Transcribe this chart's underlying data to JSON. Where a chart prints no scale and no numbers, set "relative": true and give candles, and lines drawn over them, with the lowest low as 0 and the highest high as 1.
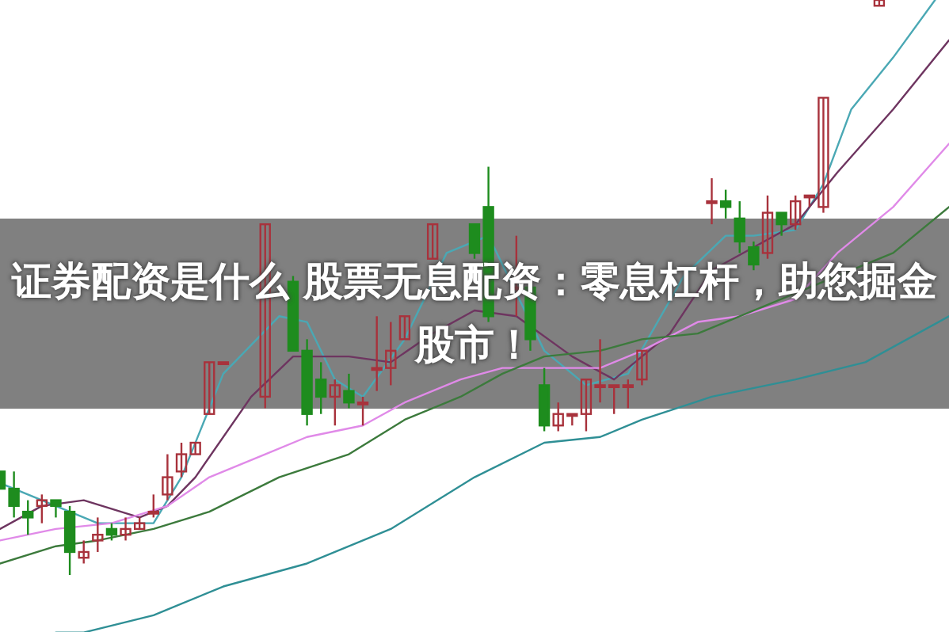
{
  "chart_data": {
    "type": "candlestick",
    "title": "证券配资是什么 股票无息配资：零息杠杆，助您掘金股市！",
    "relative": true,
    "categories": [
      null,
      null,
      null,
      null,
      null,
      null,
      null,
      null,
      null,
      null,
      null,
      null,
      null,
      null,
      null,
      null,
      null,
      null,
      null,
      null,
      null,
      null,
      null,
      null,
      null,
      null,
      null,
      null,
      null,
      null,
      null,
      null,
      null,
      null,
      null,
      null,
      null,
      null,
      null,
      null,
      null,
      null,
      null,
      null,
      null,
      null,
      null,
      null,
      null,
      null,
      null,
      null,
      null,
      null,
      null,
      null,
      null,
      null,
      null,
      null,
      null,
      null,
      null,
      null,
      null,
      null,
      null,
      null,
      null
    ],
    "ohlc": [
      [
        0.18,
        0.18,
        0.15,
        0.15
      ],
      [
        0.15,
        0.18,
        0.1,
        0.12
      ],
      [
        0.11,
        0.13,
        0.07,
        0.1
      ],
      [
        0.12,
        0.14,
        0.09,
        0.13
      ],
      [
        0.13,
        0.13,
        0.1,
        0.12
      ],
      [
        0.11,
        0.12,
        0,
        0.04
      ],
      [
        0.03,
        0.06,
        0.02,
        0.04
      ],
      [
        0.06,
        0.1,
        0.04,
        0.07
      ],
      [
        0.08,
        0.09,
        0.06,
        0.07
      ],
      [
        0.07,
        0.1,
        0.06,
        0.08
      ],
      [
        0.08,
        0.1,
        0.08,
        0.09
      ],
      [
        0.11,
        0.14,
        0.1,
        0.11
      ],
      [
        0.14,
        0.21,
        0.13,
        0.17
      ],
      [
        0.18,
        0.23,
        0.17,
        0.21
      ],
      [
        0.21,
        0.23,
        0.21,
        0.23
      ],
      [
        0.28,
        0.37,
        0.28,
        0.37
      ],
      [
        0.37,
        0.37,
        0.37,
        0.37
      ],
      null,
      null,
      [
        0.31,
        0.61,
        0.29,
        0.61
      ],
      null,
      [
        0.51,
        0.52,
        0.39,
        0.39
      ],
      [
        0.39,
        0.41,
        0.26,
        0.28
      ],
      [
        0.34,
        0.37,
        0.28,
        0.31
      ],
      [
        0.31,
        0.34,
        0.26,
        0.33
      ],
      [
        0.32,
        0.35,
        0.29,
        0.3
      ],
      [
        0.3,
        0.31,
        0.26,
        0.3
      ],
      [
        0.36,
        0.45,
        0.32,
        0.36
      ],
      [
        0.36,
        0.44,
        0.33,
        0.39
      ],
      [
        0.41,
        0.45,
        0.41,
        0.45
      ],
      null,
      [
        0.55,
        0.61,
        0.55,
        0.61
      ],
      null,
      null,
      [
        0.61,
        0.61,
        0.55,
        0.56
      ],
      [
        0.64,
        0.71,
        0.44,
        0.45
      ],
      null,
      [
        0.5,
        0.59,
        0.45,
        0.5
      ],
      [
        0.5,
        0.5,
        0.39,
        0.41
      ],
      [
        0.33,
        0.36,
        0.25,
        0.26
      ],
      [
        0.26,
        0.3,
        0.25,
        0.28
      ],
      [
        0.28,
        0.28,
        0.26,
        0.28
      ],
      [
        0.28,
        0.34,
        0.25,
        0.34
      ],
      [
        0.33,
        0.41,
        0.3,
        0.33
      ],
      [
        0.33,
        0.33,
        0.28,
        0.33
      ],
      [
        0.33,
        0.34,
        0.29,
        0.33
      ],
      [
        0.34,
        0.39,
        0.33,
        0.39
      ],
      null,
      null,
      null,
      null,
      [
        0.65,
        0.69,
        0.61,
        0.65
      ],
      [
        0.65,
        0.67,
        0.62,
        0.64
      ],
      [
        0.62,
        0.65,
        0.56,
        0.58
      ],
      [
        0.57,
        0.58,
        0.53,
        0.54
      ],
      [
        0.56,
        0.66,
        0.55,
        0.63
      ],
      [
        0.63,
        0.63,
        0.59,
        0.61
      ],
      [
        0.61,
        0.66,
        0.6,
        0.65
      ],
      [
        0.66,
        0.66,
        0.64,
        0.66
      ],
      [
        0.64,
        0.83,
        0.63,
        0.83
      ],
      null,
      null,
      null,
      [
        0.99,
        1.0,
        0.99,
        1.0
      ],
      null,
      null,
      null,
      null,
      null
    ],
    "series": [
      {
        "type": "line",
        "color": "#4aa8b4",
        "values": [
          0.16,
          null,
          null,
          null,
          0.12,
          null,
          null,
          0.09,
          null,
          null,
          null,
          0.09,
          null,
          0.17,
          null,
          null,
          0.35,
          null,
          null,
          null,
          0.45,
          null,
          0.44,
          null,
          0.34,
          null,
          0.31,
          null,
          null,
          0.41,
          null,
          null,
          0.56,
          null,
          null,
          0.59,
          null,
          null,
          null,
          0.39,
          null,
          null,
          0.33,
          null,
          null,
          0.35,
          null,
          null,
          null,
          0.52,
          null,
          null,
          0.59,
          null,
          0.59,
          null,
          null,
          0.6,
          null,
          0.68,
          null,
          0.81,
          null,
          null,
          0.9,
          null,
          null,
          1.0,
          null
        ]
      },
      {
        "type": "line",
        "color": "#6e3560",
        "values": [
          0.08,
          null,
          null,
          0.12,
          null,
          null,
          0.13,
          null,
          null,
          null,
          0.1,
          null,
          0.12,
          null,
          0.17,
          null,
          null,
          null,
          0.31,
          null,
          null,
          0.38,
          null,
          null,
          null,
          0.38,
          null,
          null,
          0.37,
          null,
          null,
          0.42,
          null,
          null,
          0.46,
          null,
          null,
          0.45,
          null,
          null,
          null,
          0.38,
          null,
          null,
          0.34,
          null,
          null,
          null,
          0.42,
          null,
          null,
          0.53,
          null,
          null,
          0.57,
          null,
          null,
          0.61,
          null,
          null,
          0.7,
          null,
          null,
          null,
          0.81,
          null,
          null,
          null,
          0.93
        ]
      },
      {
        "type": "line",
        "color": "#e08ae8",
        "values": [
          0.06,
          null,
          null,
          null,
          0.08,
          null,
          null,
          null,
          0.09,
          null,
          null,
          null,
          0.12,
          null,
          null,
          0.17,
          null,
          null,
          null,
          0.21,
          null,
          null,
          0.24,
          null,
          null,
          null,
          0.26,
          null,
          null,
          0.3,
          null,
          null,
          null,
          0.34,
          null,
          null,
          0.36,
          null,
          null,
          0.36,
          null,
          null,
          null,
          0.36,
          null,
          null,
          0.39,
          null,
          null,
          null,
          0.44,
          null,
          null,
          0.45,
          null,
          null,
          null,
          0.48,
          null,
          null,
          0.56,
          null,
          null,
          null,
          0.64,
          null,
          null,
          null,
          0.75
        ]
      },
      {
        "type": "line",
        "color": "#3c7a3c",
        "values": [
          0.02,
          null,
          null,
          null,
          0.05,
          null,
          null,
          0.06,
          null,
          null,
          null,
          0.08,
          null,
          null,
          null,
          0.11,
          null,
          null,
          null,
          null,
          0.17,
          null,
          null,
          null,
          null,
          0.21,
          null,
          null,
          null,
          0.27,
          null,
          null,
          null,
          0.31,
          null,
          null,
          0.35,
          null,
          null,
          0.38,
          null,
          null,
          null,
          0.39,
          null,
          null,
          0.41,
          null,
          null,
          null,
          0.42,
          null,
          null,
          0.45,
          null,
          null,
          null,
          0.49,
          null,
          null,
          0.52,
          null,
          null,
          null,
          0.56,
          null,
          null,
          null,
          0.64
        ]
      },
      {
        "type": "line",
        "color": "#2f8f95",
        "values": [
          null,
          null,
          null,
          null,
          -0.1,
          null,
          -0.1,
          null,
          null,
          null,
          null,
          -0.07,
          null,
          null,
          null,
          null,
          -0.02,
          null,
          null,
          null,
          null,
          null,
          0.02,
          null,
          null,
          null,
          null,
          null,
          0.08,
          null,
          null,
          null,
          null,
          null,
          0.17,
          null,
          null,
          null,
          null,
          0.23,
          null,
          null,
          null,
          0.24,
          null,
          null,
          0.27,
          null,
          null,
          null,
          null,
          0.31,
          null,
          null,
          null,
          null,
          null,
          0.34,
          null,
          null,
          null,
          null,
          0.37,
          null,
          null,
          null,
          null,
          null,
          0.45
        ]
      }
    ]
  }
}
